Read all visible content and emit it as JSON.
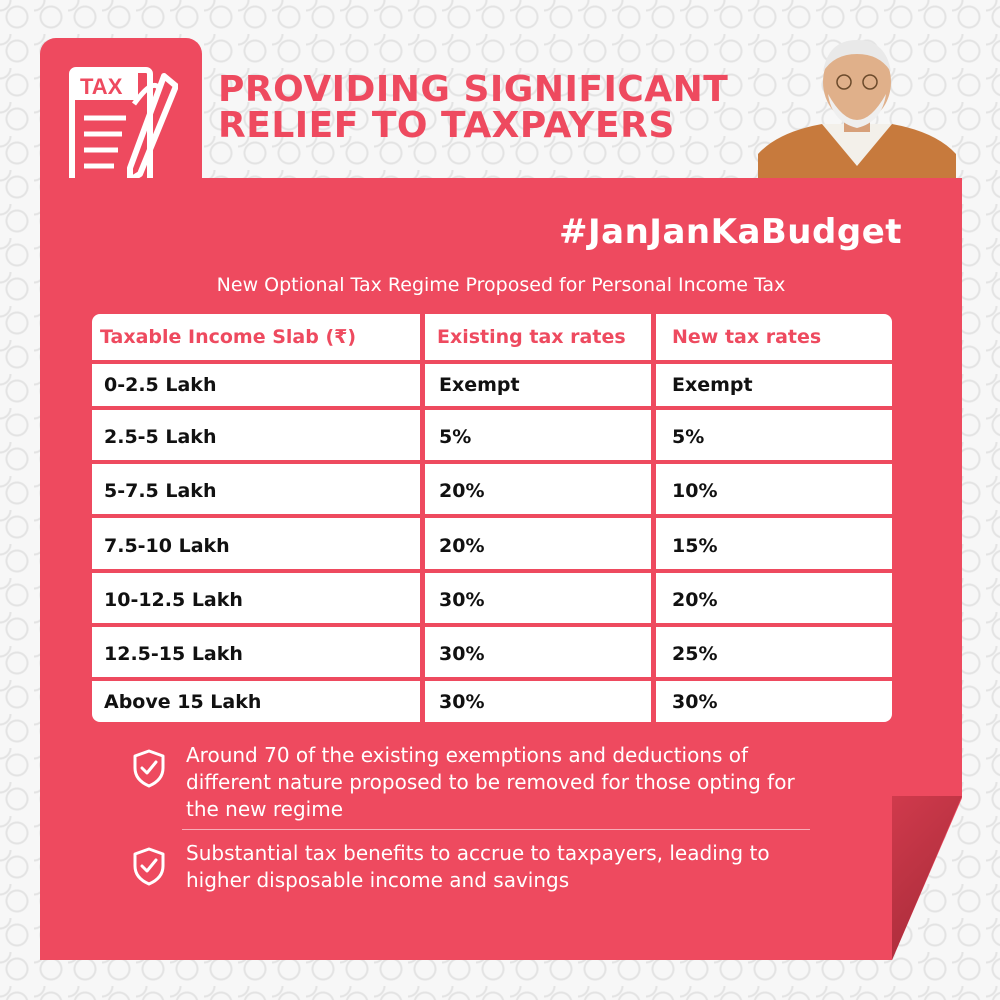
{
  "header": {
    "icon_text": "TAX",
    "headline_line1": "PROVIDING SIGNIFICANT",
    "headline_line2": "RELIEF TO TAXPAYERS"
  },
  "hashtag": "#JanJanKaBudget",
  "subtitle": "New Optional Tax Regime Proposed for Personal Income Tax",
  "table": {
    "columns": [
      "Taxable Income Slab (₹)",
      "Existing tax rates",
      "New tax rates"
    ],
    "rows": [
      [
        "0-2.5 Lakh",
        "Exempt",
        "Exempt"
      ],
      [
        "2.5-5 Lakh",
        "5%",
        "5%"
      ],
      [
        "5-7.5 Lakh",
        "20%",
        "10%"
      ],
      [
        "7.5-10 Lakh",
        "20%",
        "15%"
      ],
      [
        "10-12.5 Lakh",
        "30%",
        "20%"
      ],
      [
        "12.5-15 Lakh",
        "30%",
        "25%"
      ],
      [
        "Above 15 Lakh",
        "30%",
        "30%"
      ]
    ]
  },
  "bullets": [
    "Around 70 of the existing exemptions and deductions of different nature proposed to be removed for those opting for the new regime",
    "Substantial tax benefits to accrue to taxpayers, leading to higher disposable income and savings"
  ],
  "colors": {
    "accent": "#ee4a5f",
    "white": "#ffffff",
    "text": "#111111"
  }
}
